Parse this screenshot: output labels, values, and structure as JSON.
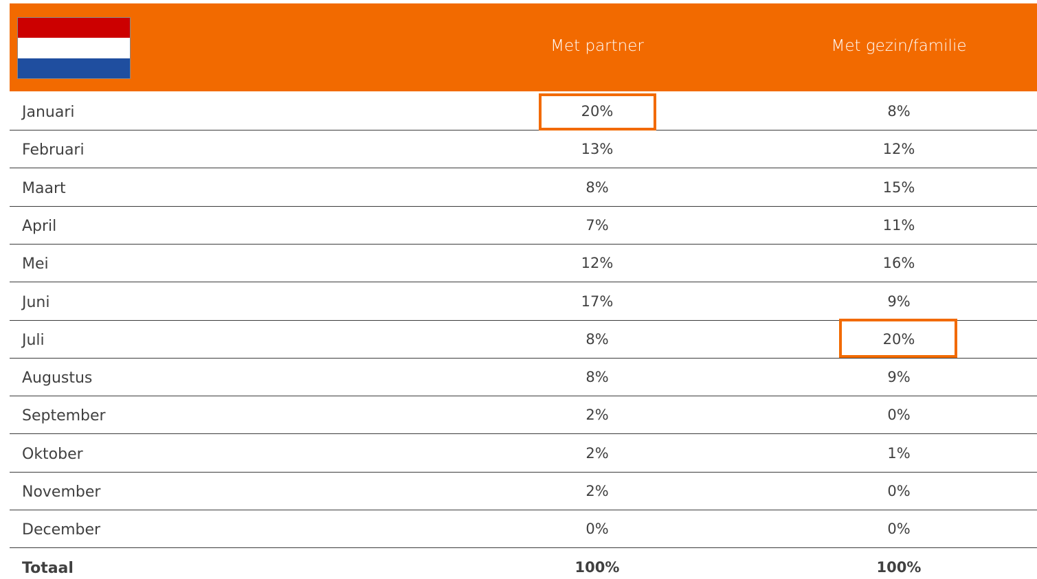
{
  "table": {
    "header": [
      "Met partner",
      "Met gezin/familie"
    ],
    "rows": [
      [
        "Januari",
        "20%",
        "8%"
      ],
      [
        "Februari",
        "13%",
        "12%"
      ],
      [
        "Maart",
        "8%",
        "15%"
      ],
      [
        "April",
        "7%",
        "11%"
      ],
      [
        "Mei",
        "12%",
        "16%"
      ],
      [
        "Juni",
        "17%",
        "9%"
      ],
      [
        "Juli",
        "8%",
        "20%"
      ],
      [
        "Augustus",
        "8%",
        "9%"
      ],
      [
        "September",
        "2%",
        "0%"
      ],
      [
        "Oktober",
        "2%",
        "1%"
      ],
      [
        "November",
        "2%",
        "0%"
      ],
      [
        "December",
        "0%",
        "0%"
      ]
    ],
    "total": [
      "Totaal",
      "100%",
      "100%"
    ]
  }
}
